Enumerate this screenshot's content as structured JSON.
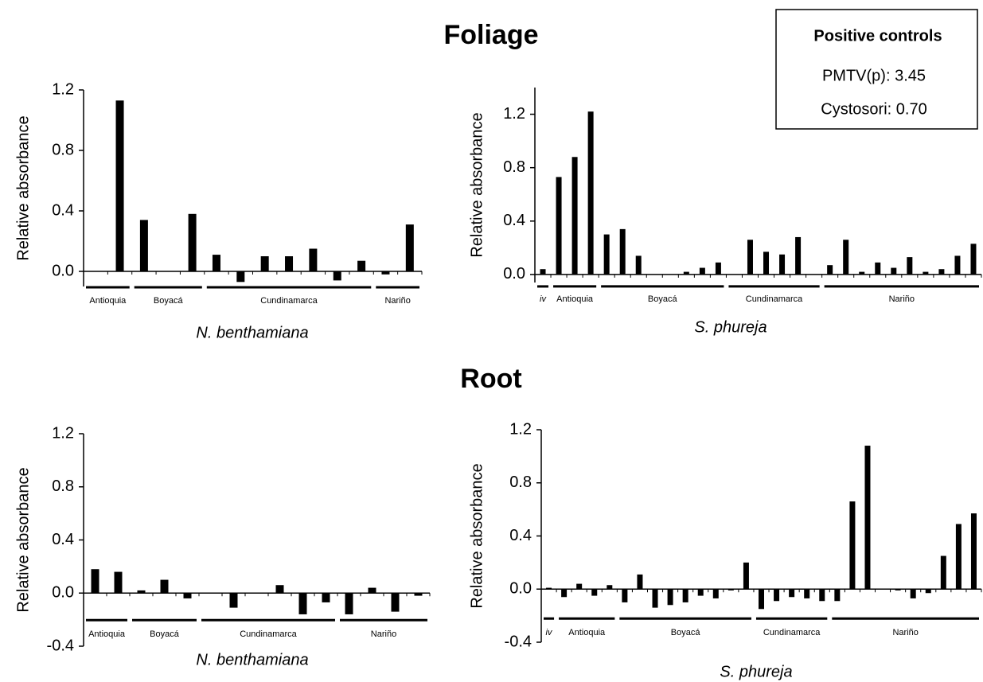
{
  "headings": [
    "Foliage",
    "Root"
  ],
  "positive_controls": {
    "title": "Positive controls",
    "lines": [
      "PMTV(p): 3.45",
      "Cystosori: 0.70"
    ]
  },
  "chart_data": [
    {
      "type": "bar",
      "ylabel": "Relative absorbance",
      "xlabel": "N. benthamiana",
      "color": "#000000",
      "categories": [
        null,
        null,
        null,
        null,
        null,
        null,
        null,
        null,
        null,
        null,
        null,
        null,
        null,
        null
      ],
      "values": [
        0,
        1.13,
        0.34,
        0,
        0.38,
        0.11,
        -0.07,
        0.1,
        0.1,
        0.15,
        -0.06,
        0.07,
        -0.02,
        0.31
      ],
      "groups": [
        {
          "label": "Antioquia",
          "count": 2
        },
        {
          "label": "Boyacá",
          "count": 3
        },
        {
          "label": "Cundinamarca",
          "count": 7
        },
        {
          "label": "Nariño",
          "count": 2
        }
      ],
      "ylim": [
        -0.1,
        1.2
      ],
      "yticks": [
        {
          "value": 0,
          "label": "0.0"
        },
        0.4,
        0.8,
        1.2
      ]
    },
    {
      "type": "bar",
      "ylabel": "Relative absorbance",
      "xlabel": "S. phureja",
      "color": "#000000",
      "categories": [
        null,
        null,
        null,
        null,
        null,
        null,
        null,
        null,
        null,
        null,
        null,
        null,
        null,
        null,
        null,
        null,
        null,
        null,
        null,
        null,
        null,
        null,
        null,
        null,
        null,
        null,
        null,
        null
      ],
      "values": [
        0.04,
        0.73,
        0.88,
        1.22,
        0.3,
        0.34,
        0.14,
        0,
        0,
        0.02,
        0.05,
        0.09,
        0,
        0.26,
        0.17,
        0.15,
        0.28,
        0,
        0.07,
        0.26,
        0.02,
        0.09,
        0.05,
        0.13,
        0.02,
        0.04,
        0.14,
        0.23
      ],
      "groups": [
        {
          "label": "iv",
          "count": 1
        },
        {
          "label": "Antioquia",
          "count": 3
        },
        {
          "label": "Boyacá",
          "count": 8
        },
        {
          "label": "Cundinamarca",
          "count": 6
        },
        {
          "label": "Nariño",
          "count": 10
        }
      ],
      "ylim": [
        -0.06,
        1.4
      ],
      "yticks": [
        {
          "value": 0,
          "label": "0.0"
        },
        0.4,
        0.8,
        1.2
      ]
    },
    {
      "type": "bar",
      "ylabel": "Relative absorbance",
      "xlabel": "N. benthamiana",
      "color": "#000000",
      "categories": [
        null,
        null,
        null,
        null,
        null,
        null,
        null,
        null,
        null,
        null,
        null,
        null,
        null,
        null,
        null
      ],
      "values": [
        0.18,
        0.16,
        0.02,
        0.1,
        -0.04,
        0,
        -0.11,
        0,
        0.06,
        -0.16,
        -0.07,
        -0.16,
        0.04,
        -0.14,
        -0.02
      ],
      "groups": [
        {
          "label": "Antioquia",
          "count": 2
        },
        {
          "label": "Boyacá",
          "count": 3
        },
        {
          "label": "Cundinamarca",
          "count": 6
        },
        {
          "label": "Nariño",
          "count": 4
        }
      ],
      "ylim": [
        -0.4,
        1.2
      ],
      "yticks": [
        -0.4,
        {
          "value": 0,
          "label": "0.0"
        },
        0.4,
        0.8,
        1.2
      ]
    },
    {
      "type": "bar",
      "ylabel": "Relative absorbance",
      "xlabel": "S. phureja",
      "color": "#000000",
      "categories": [
        null,
        null,
        null,
        null,
        null,
        null,
        null,
        null,
        null,
        null,
        null,
        null,
        null,
        null,
        null,
        null,
        null,
        null,
        null,
        null,
        null,
        null,
        null,
        null,
        null,
        null,
        null,
        null,
        null
      ],
      "values": [
        0.01,
        -0.06,
        0.04,
        -0.05,
        0.03,
        -0.1,
        0.11,
        -0.14,
        -0.12,
        -0.1,
        -0.05,
        -0.07,
        -0.01,
        0.2,
        -0.15,
        -0.09,
        -0.06,
        -0.07,
        -0.09,
        -0.09,
        0.66,
        1.08,
        0,
        -0.01,
        -0.07,
        -0.03,
        0.25,
        0.49,
        0.57
      ],
      "groups": [
        {
          "label": "iv",
          "count": 1
        },
        {
          "label": "Antioquia",
          "count": 4
        },
        {
          "label": "Boyacá",
          "count": 9
        },
        {
          "label": "Cundinamarca",
          "count": 5
        },
        {
          "label": "Nariño",
          "count": 10
        }
      ],
      "ylim": [
        -0.4,
        1.2
      ],
      "yticks": [
        -0.4,
        {
          "value": 0,
          "label": "0.0"
        },
        0.4,
        0.8,
        1.2
      ]
    }
  ]
}
